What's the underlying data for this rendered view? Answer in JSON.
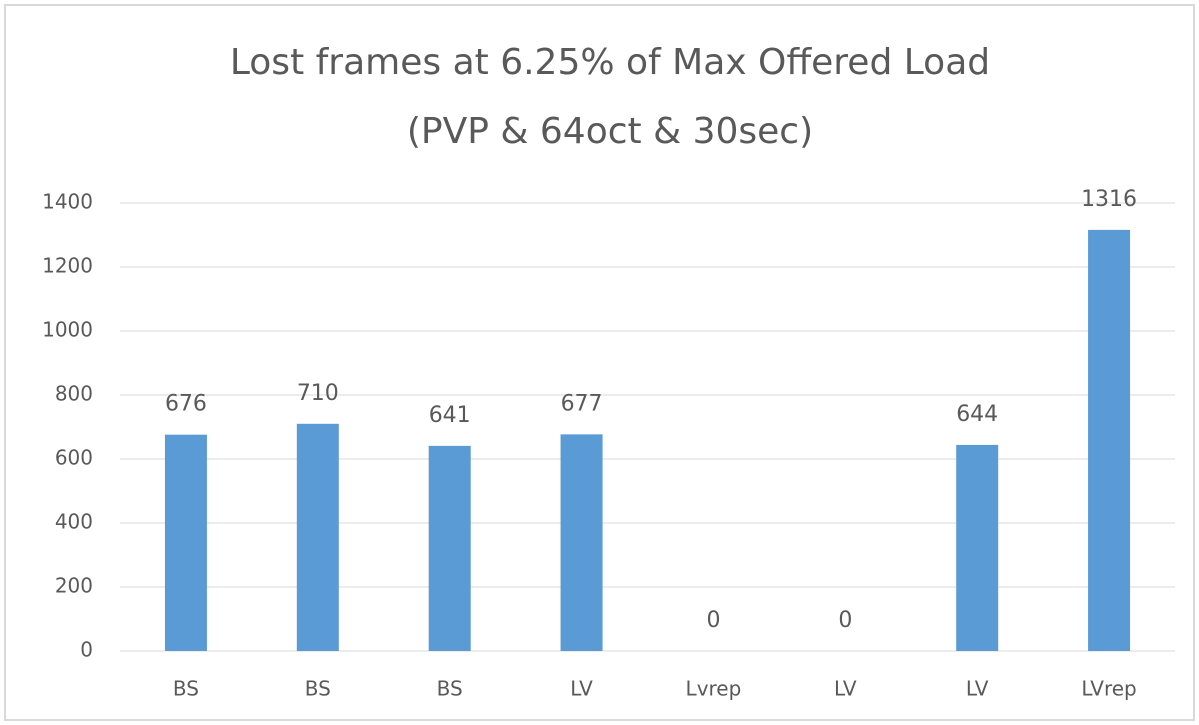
{
  "chart_data": {
    "type": "bar",
    "title": [
      "Lost frames at 6.25% of Max Offered Load",
      "(PVP & 64oct & 30sec)"
    ],
    "categories": [
      "BS",
      "BS",
      "BS",
      "LV",
      "Lvrep",
      "LV",
      "LV",
      "LVrep"
    ],
    "values": [
      676,
      710,
      641,
      677,
      0,
      0,
      644,
      1316
    ],
    "color": "#5b9bd5",
    "ylim": [
      0,
      1400
    ],
    "yticks": [
      0,
      200,
      400,
      600,
      800,
      1000,
      1200,
      1400
    ],
    "grid": true
  }
}
